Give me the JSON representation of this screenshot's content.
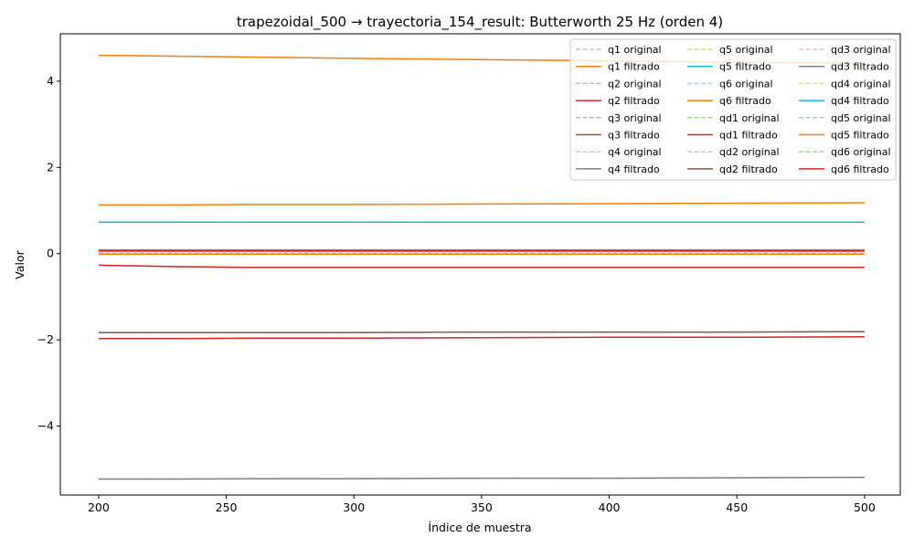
{
  "chart_data": {
    "type": "line",
    "title": "trapezoidal_500 → trayectoria_154_result: Butterworth 25 Hz (orden 4)",
    "xlabel": "Índice de muestra",
    "ylabel": "Valor",
    "xlim": [
      185,
      514
    ],
    "ylim": [
      -5.6,
      5.1
    ],
    "x_ticks": [
      200,
      250,
      300,
      350,
      400,
      450,
      500
    ],
    "x_tick_labels": [
      "200",
      "250",
      "300",
      "350",
      "400",
      "450",
      "500"
    ],
    "y_ticks": [
      -4,
      -2,
      0,
      2,
      4
    ],
    "y_tick_labels": [
      "−4",
      "−2",
      "0",
      "2",
      "4"
    ],
    "grid": false,
    "legend": {
      "placement": "top-right",
      "columns": 3
    },
    "x": [
      200,
      230,
      260,
      300,
      350,
      400,
      450,
      500
    ],
    "series": [
      {
        "name": "q1 original",
        "color": "#aec7e8",
        "style": "dashed",
        "values": [
          4.6,
          4.58,
          4.56,
          4.53,
          4.5,
          4.47,
          4.44,
          4.42
        ]
      },
      {
        "name": "q1 filtrado",
        "color": "#ff7f0e",
        "style": "solid",
        "values": [
          4.6,
          4.58,
          4.56,
          4.53,
          4.5,
          4.47,
          4.44,
          4.42
        ]
      },
      {
        "name": "q2 original",
        "color": "#98df8a",
        "style": "dashed",
        "values": [
          -0.27,
          -0.3,
          -0.32,
          -0.32,
          -0.32,
          -0.32,
          -0.32,
          -0.32
        ]
      },
      {
        "name": "q2 filtrado",
        "color": "#d62728",
        "style": "solid",
        "values": [
          -0.27,
          -0.3,
          -0.32,
          -0.32,
          -0.32,
          -0.32,
          -0.32,
          -0.32
        ]
      },
      {
        "name": "q3 original",
        "color": "#c5b0d5",
        "style": "dashed",
        "values": [
          -1.83,
          -1.83,
          -1.83,
          -1.83,
          -1.82,
          -1.82,
          -1.82,
          -1.81
        ]
      },
      {
        "name": "q3 filtrado",
        "color": "#8c564b",
        "style": "solid",
        "values": [
          -1.83,
          -1.83,
          -1.83,
          -1.83,
          -1.82,
          -1.82,
          -1.82,
          -1.81
        ]
      },
      {
        "name": "q4 original",
        "color": "#f7b6d2",
        "style": "dashed",
        "values": [
          -5.23,
          -5.23,
          -5.22,
          -5.22,
          -5.21,
          -5.21,
          -5.2,
          -5.19
        ]
      },
      {
        "name": "q4 filtrado",
        "color": "#7f7f7f",
        "style": "solid",
        "values": [
          -5.23,
          -5.23,
          -5.22,
          -5.22,
          -5.21,
          -5.21,
          -5.2,
          -5.19
        ]
      },
      {
        "name": "q5 original",
        "color": "#dbdb8d",
        "style": "dashed",
        "values": [
          1.13,
          1.13,
          1.14,
          1.14,
          1.15,
          1.16,
          1.17,
          1.18
        ]
      },
      {
        "name": "q5 filtrado",
        "color": "#17becf",
        "style": "solid",
        "values": [
          0.73,
          0.73,
          0.73,
          0.73,
          0.73,
          0.73,
          0.73,
          0.73
        ]
      },
      {
        "name": "q6 original",
        "color": "#9edae5",
        "style": "dashed",
        "values": [
          -1.97,
          -1.97,
          -1.96,
          -1.96,
          -1.95,
          -1.94,
          -1.94,
          -1.93
        ]
      },
      {
        "name": "q6 filtrado",
        "color": "#ff7f0e",
        "style": "solid",
        "values": [
          1.13,
          1.13,
          1.14,
          1.14,
          1.15,
          1.16,
          1.17,
          1.18
        ]
      },
      {
        "name": "qd1 original",
        "color": "#98df8a",
        "style": "dashed",
        "values": [
          0.0,
          0.0,
          0.0,
          0.0,
          0.0,
          0.0,
          0.0,
          0.0
        ]
      },
      {
        "name": "qd1 filtrado",
        "color": "#d62728",
        "style": "solid",
        "values": [
          -1.97,
          -1.97,
          -1.96,
          -1.96,
          -1.95,
          -1.94,
          -1.94,
          -1.93
        ]
      },
      {
        "name": "qd2 original",
        "color": "#c7c7c7",
        "style": "dashed",
        "values": [
          0.05,
          0.05,
          0.05,
          0.05,
          0.05,
          0.05,
          0.05,
          0.05
        ]
      },
      {
        "name": "qd2 filtrado",
        "color": "#8c564b",
        "style": "solid",
        "values": [
          0.08,
          0.08,
          0.08,
          0.08,
          0.08,
          0.08,
          0.08,
          0.08
        ]
      },
      {
        "name": "qd3 original",
        "color": "#f7b6d2",
        "style": "dashed",
        "values": [
          0.03,
          0.03,
          0.03,
          0.03,
          0.03,
          0.03,
          0.03,
          0.03
        ]
      },
      {
        "name": "qd3 filtrado",
        "color": "#7f7f7f",
        "style": "solid",
        "values": [
          0.05,
          0.05,
          0.05,
          0.05,
          0.05,
          0.05,
          0.05,
          0.05
        ]
      },
      {
        "name": "qd4 original",
        "color": "#dbdb8d",
        "style": "dashed",
        "values": [
          0.02,
          0.02,
          0.02,
          0.02,
          0.02,
          0.02,
          0.02,
          0.02
        ]
      },
      {
        "name": "qd4 filtrado",
        "color": "#17becf",
        "style": "solid",
        "values": [
          0.73,
          0.73,
          0.73,
          0.73,
          0.73,
          0.73,
          0.73,
          0.73
        ]
      },
      {
        "name": "qd5 original",
        "color": "#aec7e8",
        "style": "dashed",
        "values": [
          0.01,
          0.01,
          0.01,
          0.01,
          0.01,
          0.01,
          0.01,
          0.01
        ]
      },
      {
        "name": "qd5 filtrado",
        "color": "#ff7f0e",
        "style": "solid",
        "values": [
          -0.01,
          -0.01,
          -0.01,
          -0.01,
          -0.01,
          -0.01,
          -0.01,
          -0.01
        ]
      },
      {
        "name": "qd6 original",
        "color": "#98df8a",
        "style": "dashed",
        "values": [
          0.06,
          0.06,
          0.06,
          0.06,
          0.06,
          0.06,
          0.06,
          0.06
        ]
      },
      {
        "name": "qd6 filtrado",
        "color": "#d62728",
        "style": "solid",
        "values": [
          0.07,
          0.07,
          0.07,
          0.07,
          0.07,
          0.07,
          0.07,
          0.07
        ]
      }
    ]
  }
}
